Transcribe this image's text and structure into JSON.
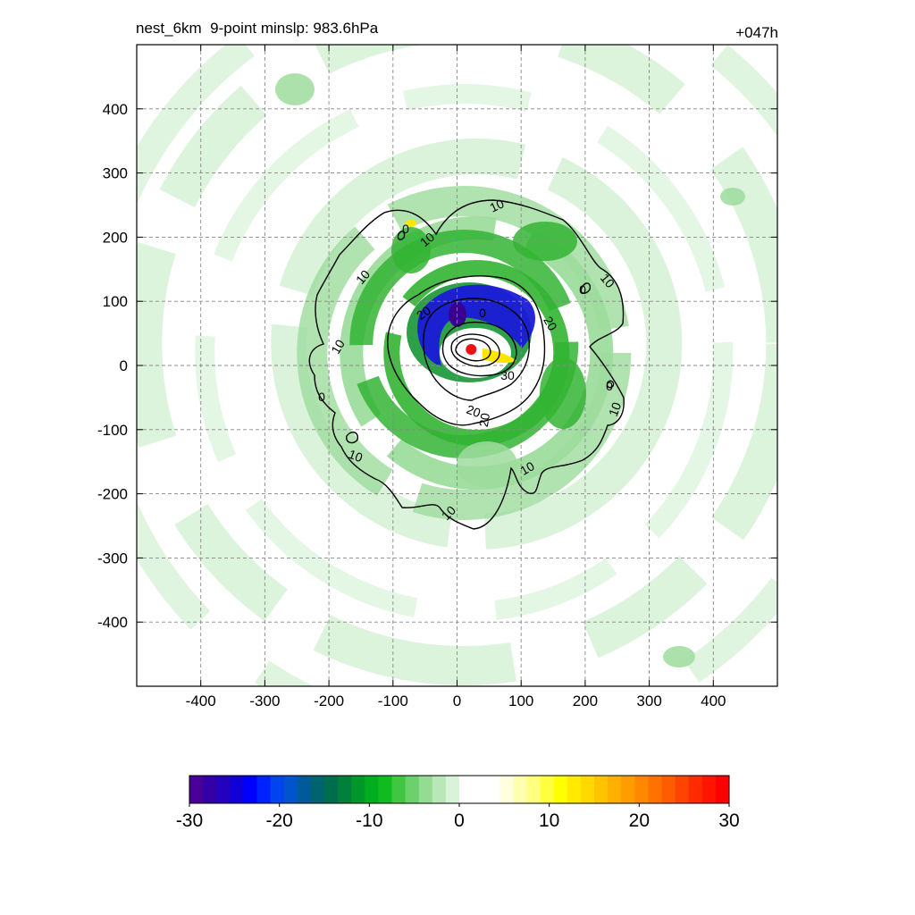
{
  "header": {
    "title": "nest_6km  9-point minslp: 983.6hPa",
    "forecast_hour": "+047h"
  },
  "chart_data": {
    "type": "heatmap",
    "title": "nest_6km  9-point minslp: 983.6hPa",
    "annotation": "+047h",
    "x_range": [
      -500,
      500
    ],
    "y_range": [
      -500,
      500
    ],
    "x_ticks": [
      -400,
      -300,
      -200,
      -100,
      0,
      100,
      200,
      300,
      400
    ],
    "y_ticks": [
      400,
      300,
      200,
      100,
      0,
      -100,
      -200,
      -300,
      -400
    ],
    "grid": true,
    "center_marker": {
      "x": 22,
      "y": 25,
      "color": "#ee1111"
    },
    "contour_levels": [
      10,
      20,
      30
    ],
    "colorbar": {
      "range": [
        -30,
        30
      ],
      "ticks": [
        -30,
        -20,
        -10,
        0,
        10,
        20,
        30
      ],
      "colors": [
        "#4a0096",
        "#3300a6",
        "#2400bf",
        "#0f00d8",
        "#0000ff",
        "#0022ff",
        "#0044ee",
        "#0055cc",
        "#005a9a",
        "#00636d",
        "#006e4c",
        "#00803a",
        "#00972a",
        "#00ae1f",
        "#10bb20",
        "#40c640",
        "#6cd06c",
        "#94db94",
        "#b8e8b8",
        "#d9f3d9",
        "#ffffff",
        "#ffffff",
        "#ffffff",
        "#ffffe0",
        "#ffffb0",
        "#ffff80",
        "#ffff40",
        "#ffff00",
        "#ffea00",
        "#ffd800",
        "#ffc400",
        "#ffb000",
        "#ff9c00",
        "#ff8800",
        "#ff7200",
        "#ff5c00",
        "#ff4400",
        "#ff2a00",
        "#ff1400",
        "#ff0000"
      ]
    },
    "colors": {
      "light_green": "#d8f2d8",
      "mid_green": "#9edc9e",
      "green": "#32b432",
      "dark_green": "#0a8f2a",
      "blue": "#1a1ad8",
      "purple": "#3a0090",
      "yellow": "#ffe600"
    }
  },
  "contour_labels": [
    "10",
    "10",
    "10",
    "10",
    "10",
    "10",
    "10",
    "10",
    "10",
    "0",
    "0",
    "0",
    "0",
    "20",
    "20",
    "20",
    "20",
    "30",
    "0"
  ]
}
